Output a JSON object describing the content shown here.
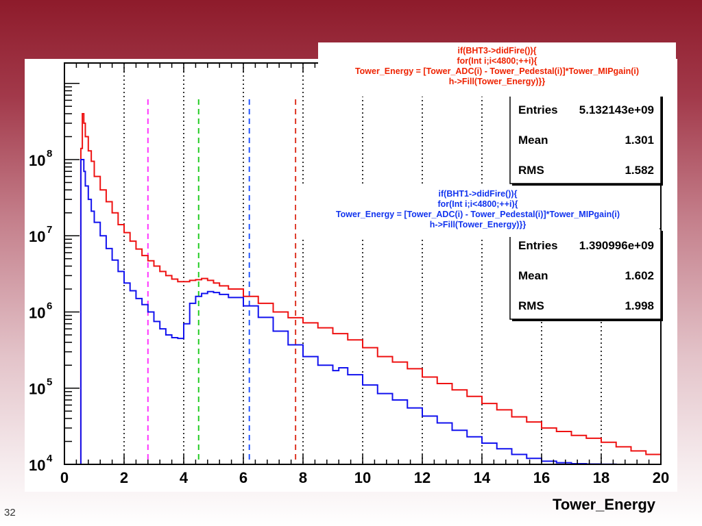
{
  "slide": {
    "page_number": "32",
    "background_colors": [
      "#8e1b2b",
      "#ffffff"
    ]
  },
  "chart_data": {
    "type": "line",
    "xlabel": "Tower_Energy",
    "ylabel": "",
    "xlim": [
      0,
      20
    ],
    "ylim": [
      10000,
      2000000000
    ],
    "y_scale": "log",
    "x_ticks": [
      0,
      2,
      4,
      6,
      8,
      10,
      12,
      14,
      16,
      18,
      20
    ],
    "y_tick_labels": [
      {
        "value": 10000,
        "mantissa": "10",
        "exponent": "4"
      },
      {
        "value": 100000,
        "mantissa": "10",
        "exponent": "5"
      },
      {
        "value": 1000000,
        "mantissa": "10",
        "exponent": "6"
      },
      {
        "value": 10000000,
        "mantissa": "10",
        "exponent": "7"
      },
      {
        "value": 100000000,
        "mantissa": "10",
        "exponent": "8"
      }
    ],
    "grid": "vertical dotted at even x",
    "series": [
      {
        "color": "#ee1111",
        "x": [
          0.5,
          0.55,
          0.6,
          0.65,
          0.7,
          0.8,
          0.9,
          1.0,
          1.2,
          1.4,
          1.6,
          1.8,
          2.0,
          2.2,
          2.4,
          2.6,
          2.8,
          3.0,
          3.2,
          3.4,
          3.6,
          3.8,
          4.0,
          4.2,
          4.4,
          4.6,
          4.8,
          5.0,
          5.2,
          5.5,
          6.0,
          6.5,
          7.0,
          7.5,
          8.0,
          8.5,
          9.0,
          9.5,
          10.0,
          10.5,
          11.0,
          11.5,
          12.0,
          12.5,
          13.0,
          13.5,
          14.0,
          14.5,
          15.0,
          15.5,
          16.0,
          16.5,
          17.0,
          17.5,
          18.0,
          18.5,
          19.0,
          19.5,
          20.0
        ],
        "y": [
          10000,
          140000000,
          400000000,
          300000000,
          200000000,
          130000000,
          95000000,
          60000000,
          40000000,
          28000000,
          20000000,
          14000000,
          11000000,
          8500000,
          6700000,
          5500000,
          4700000,
          4000000,
          3400000,
          3000000,
          2700000,
          2500000,
          2500000,
          2600000,
          2650000,
          2750000,
          2600000,
          2400000,
          2200000,
          2000000,
          1600000,
          1300000,
          1000000,
          840000,
          720000,
          620000,
          520000,
          430000,
          340000,
          260000,
          220000,
          180000,
          140000,
          115000,
          95000,
          78000,
          63000,
          52000,
          42000,
          36000,
          30000,
          27000,
          24000,
          22000,
          19500,
          17000,
          15000,
          13500,
          12500
        ]
      },
      {
        "color": "#1111ee",
        "x": [
          0.5,
          0.55,
          0.6,
          0.65,
          0.7,
          0.8,
          0.9,
          1.0,
          1.2,
          1.4,
          1.6,
          1.8,
          2.0,
          2.2,
          2.4,
          2.6,
          2.8,
          3.0,
          3.2,
          3.4,
          3.6,
          3.8,
          4.0,
          4.2,
          4.4,
          4.6,
          4.8,
          5.0,
          5.2,
          5.5,
          6.0,
          6.5,
          7.0,
          7.5,
          8.0,
          8.5,
          9.0,
          9.2,
          9.5,
          10.0,
          10.5,
          11.0,
          11.5,
          12.0,
          12.5,
          13.0,
          13.5,
          14.0,
          14.5,
          15.0,
          15.5,
          16.0,
          16.5,
          17.0,
          17.5,
          18.0,
          18.5
        ],
        "y": [
          10000,
          100000000,
          100000000,
          70000000,
          45000000,
          30000000,
          21000000,
          15000000,
          10000000,
          6800000,
          4800000,
          3400000,
          2400000,
          1900000,
          1500000,
          1250000,
          1000000,
          750000,
          600000,
          500000,
          460000,
          450000,
          700000,
          1300000,
          1600000,
          1750000,
          1850000,
          1800000,
          1700000,
          1550000,
          1200000,
          850000,
          560000,
          370000,
          260000,
          200000,
          170000,
          185000,
          150000,
          110000,
          85000,
          70000,
          55000,
          43000,
          35000,
          28000,
          23000,
          19000,
          16000,
          13500,
          12000,
          11000,
          10500,
          10200,
          10100,
          10050,
          10000
        ]
      }
    ],
    "dashed_lines": [
      {
        "x": 2.8,
        "color": "#ff33ff"
      },
      {
        "x": 4.5,
        "color": "#22cc22"
      },
      {
        "x": 6.2,
        "color": "#2255ff"
      },
      {
        "x": 7.75,
        "color": "#dd3322"
      }
    ],
    "stat_boxes": [
      {
        "code_color": "#ee2200",
        "code_lines": [
          "if(BHT3->didFire()){",
          "for(Int i;i<4800;++i){",
          "Tower_Energy = [Tower_ADC(i) - Tower_Pedestal(i)]*Tower_MIPgain(i)",
          "h->Fill(Tower_Energy)}}"
        ],
        "rows": [
          {
            "label": "Entries",
            "value": "5.132143e+09"
          },
          {
            "label": "Mean",
            "value": "1.301"
          },
          {
            "label": "RMS",
            "value": "1.582"
          }
        ]
      },
      {
        "code_color": "#1133ee",
        "code_lines": [
          "if(BHT1->didFire()){",
          "for(Int i;i<4800;++i){",
          "Tower_Energy = [Tower_ADC(i) - Tower_Pedestal(i)]*Tower_MIPgain(i)",
          "h->Fill(Tower_Energy)}}"
        ],
        "rows": [
          {
            "label": "Entries",
            "value": "1.390996e+09"
          },
          {
            "label": "Mean",
            "value": "1.602"
          },
          {
            "label": "RMS",
            "value": "1.998"
          }
        ]
      }
    ]
  }
}
